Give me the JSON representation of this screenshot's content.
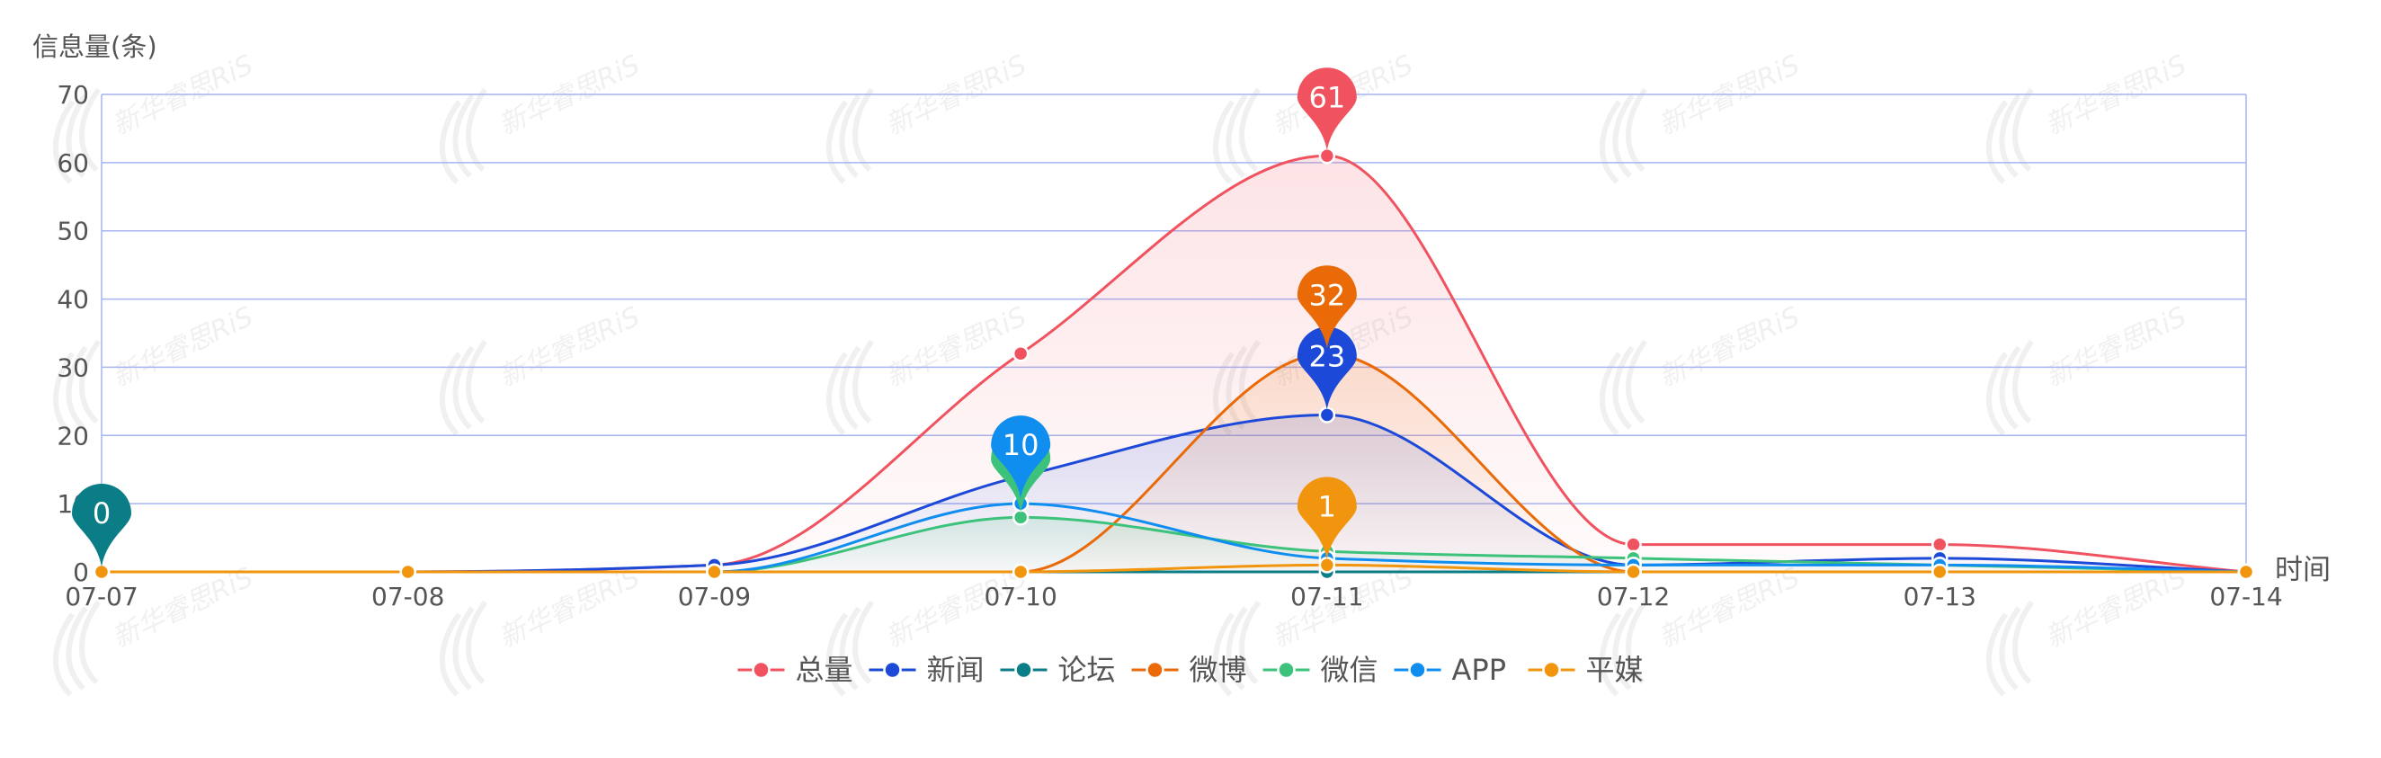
{
  "chart_data": {
    "type": "line",
    "smooth": true,
    "ylabel": "信息量(条)",
    "xlabel": "时间",
    "x": [
      "07-07",
      "07-08",
      "07-09",
      "07-10",
      "07-11",
      "07-12",
      "07-13",
      "07-14"
    ],
    "ylim": [
      0,
      70
    ],
    "yticks": [
      0,
      10,
      20,
      30,
      40,
      50,
      60,
      70
    ],
    "grid": true,
    "legend": "bottom-center",
    "series": [
      {
        "name": "总量",
        "color": "#f0535f",
        "area": true,
        "values": [
          0,
          0,
          1,
          32,
          61,
          4,
          4,
          0
        ],
        "marker": {
          "index": 4,
          "label": "61"
        }
      },
      {
        "name": "新闻",
        "color": "#1d49d8",
        "area": true,
        "values": [
          0,
          0,
          1,
          14,
          23,
          1,
          2,
          0
        ],
        "marker": {
          "index": 4,
          "label": "23"
        }
      },
      {
        "name": "论坛",
        "color": "#0a7d86",
        "area": false,
        "values": [
          0,
          0,
          0,
          0,
          0,
          0,
          0,
          0
        ],
        "marker": {
          "index": 0,
          "label": "0"
        }
      },
      {
        "name": "微博",
        "color": "#ea6a08",
        "area": true,
        "values": [
          0,
          0,
          0,
          0,
          32,
          0,
          0,
          0
        ],
        "marker": {
          "index": 4,
          "label": "32"
        }
      },
      {
        "name": "微信",
        "color": "#3cc27b",
        "area": true,
        "values": [
          0,
          0,
          0,
          8,
          3,
          2,
          1,
          0
        ],
        "marker": {
          "index": 3,
          "label": ""
        }
      },
      {
        "name": "APP",
        "color": "#0f8ef0",
        "area": false,
        "values": [
          0,
          0,
          0,
          10,
          2,
          1,
          1,
          0
        ],
        "marker": {
          "index": 3,
          "label": "10"
        }
      },
      {
        "name": "平媒",
        "color": "#f0950d",
        "area": false,
        "values": [
          0,
          0,
          0,
          0,
          1,
          0,
          0,
          0
        ],
        "marker": {
          "index": 4,
          "label": "1"
        }
      }
    ],
    "watermark": "新华睿思RiS",
    "axis_color": "#a6b4f2",
    "text_color": "#555555"
  }
}
